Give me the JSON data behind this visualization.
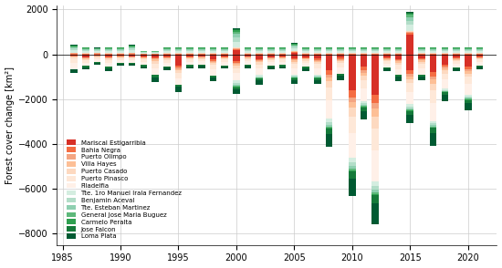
{
  "years": [
    1986,
    1987,
    1988,
    1989,
    1990,
    1991,
    1992,
    1993,
    1994,
    1995,
    1996,
    1997,
    1998,
    1999,
    2000,
    2001,
    2002,
    2003,
    2004,
    2005,
    2006,
    2007,
    2008,
    2009,
    2010,
    2011,
    2012,
    2013,
    2014,
    2015,
    2016,
    2017,
    2018,
    2019,
    2020,
    2021
  ],
  "districts": [
    "Mariscal Estigarribia",
    "Bahia Negra",
    "Puerto Olimpo",
    "Villa Hayes",
    "Puerto Casado",
    "Puerto Pinasco",
    "Filadelfia",
    "Tte. 1ro Manuel Irala Fernandez",
    "Benjamin Aceval",
    "Tte. Esteban Martinez",
    "General Jose Maria Buguez",
    "Carmelo Peralta",
    "Jose Falcon",
    "Loma Plata"
  ],
  "colors": [
    "#d73027",
    "#f46d43",
    "#f4a582",
    "#fdbf96",
    "#fdd9c0",
    "#fee8d8",
    "#fff0e8",
    "#d4ede0",
    "#b2ddc8",
    "#8ecfb0",
    "#5db87a",
    "#2fa050",
    "#157a3a",
    "#005a32"
  ],
  "ylabel": "Forest cover change [km²]",
  "ylim": [
    -8500,
    2200
  ],
  "yticks": [
    2000,
    0,
    -2000,
    -4000,
    -6000,
    -8000
  ],
  "xlim": [
    1984.5,
    2022.5
  ],
  "bar_width": 0.6
}
